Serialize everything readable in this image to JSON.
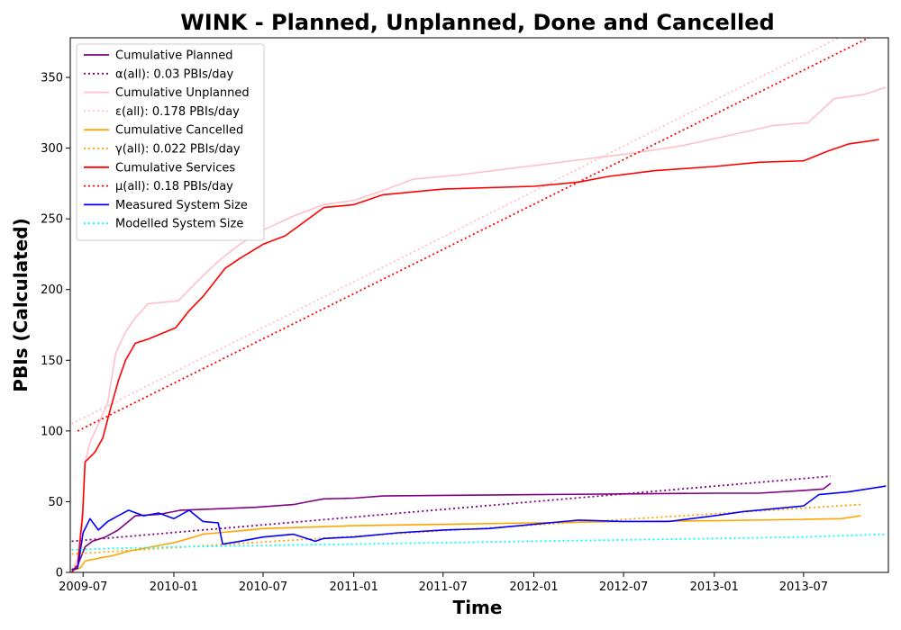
{
  "chart_data": {
    "type": "line",
    "title": "WINK - Planned, Unplanned, Done  and Cancelled",
    "xlabel": "Time",
    "ylabel": "PBIs (Calculated)",
    "xlim": [
      "2009-06-05",
      "2013-12-20"
    ],
    "ylim": [
      0,
      378
    ],
    "x_ticks": [
      {
        "date": "2009-07-01",
        "label": "2009-07"
      },
      {
        "date": "2010-01-01",
        "label": "2010-01"
      },
      {
        "date": "2010-07-01",
        "label": "2010-07"
      },
      {
        "date": "2011-01-01",
        "label": "2011-01"
      },
      {
        "date": "2011-07-01",
        "label": "2011-07"
      },
      {
        "date": "2012-01-01",
        "label": "2012-01"
      },
      {
        "date": "2012-07-01",
        "label": "2012-07"
      },
      {
        "date": "2013-01-01",
        "label": "2013-01"
      },
      {
        "date": "2013-07-01",
        "label": "2013-07"
      }
    ],
    "y_ticks": [
      0,
      50,
      100,
      150,
      200,
      250,
      300,
      350
    ],
    "grid": false,
    "legend_position": "top-left",
    "series": [
      {
        "name": "Cumulative Planned",
        "color": "#800080",
        "style": "solid",
        "x": [
          "2009-06-08",
          "2009-06-20",
          "2009-06-28",
          "2009-07-05",
          "2009-07-20",
          "2009-08-15",
          "2009-09-10",
          "2009-10-15",
          "2009-12-01",
          "2010-01-15",
          "2010-04-01",
          "2010-06-15",
          "2010-09-01",
          "2010-10-01",
          "2010-11-01",
          "2011-01-01",
          "2011-03-01",
          "2011-07-01",
          "2012-01-01",
          "2012-07-01",
          "2013-01-01",
          "2013-04-01",
          "2013-07-01",
          "2013-08-10",
          "2013-08-25"
        ],
        "y": [
          2,
          5,
          12,
          18,
          22,
          25,
          30,
          40,
          41,
          44,
          45,
          46,
          48,
          50,
          52,
          52.5,
          54,
          54.5,
          55,
          55.5,
          56,
          56,
          58,
          59,
          63
        ]
      },
      {
        "name": "α(all): 0.03 PBIs/day",
        "color": "#800080",
        "style": "dotted",
        "x": [
          "2009-06-08",
          "2013-08-25"
        ],
        "y": [
          22,
          68
        ]
      },
      {
        "name": "Cumulative Unplanned",
        "color": "#ffc0cb",
        "style": "solid",
        "x": [
          "2009-06-08",
          "2009-06-20",
          "2009-06-30",
          "2009-07-05",
          "2009-07-15",
          "2009-08-01",
          "2009-08-20",
          "2009-09-05",
          "2009-09-25",
          "2009-10-15",
          "2009-11-10",
          "2010-01-10",
          "2010-02-15",
          "2010-04-01",
          "2010-05-15",
          "2010-07-01",
          "2010-09-01",
          "2010-11-01",
          "2011-01-01",
          "2011-03-01",
          "2011-05-01",
          "2011-08-01",
          "2011-11-01",
          "2012-02-01",
          "2012-05-01",
          "2012-08-01",
          "2012-11-01",
          "2013-02-01",
          "2013-05-01",
          "2013-07-10",
          "2013-09-01",
          "2013-11-01",
          "2013-12-15"
        ],
        "y": [
          0,
          10,
          45,
          78,
          92,
          105,
          120,
          155,
          170,
          180,
          190,
          192,
          205,
          220,
          232,
          242,
          252,
          260,
          263,
          270,
          278,
          281,
          285,
          289,
          293,
          297,
          302,
          309,
          316,
          318,
          335,
          338,
          343
        ]
      },
      {
        "name": "ε(all): 0.178 PBIs/day",
        "color": "#ffc0cb",
        "style": "dotted",
        "x": [
          "2009-06-08",
          "2013-09-10"
        ],
        "y": [
          105,
          378
        ]
      },
      {
        "name": "Cumulative Cancelled",
        "color": "#ffa500",
        "style": "solid",
        "x": [
          "2009-06-08",
          "2009-06-25",
          "2009-07-05",
          "2009-08-01",
          "2009-09-01",
          "2009-10-01",
          "2009-11-01",
          "2009-12-01",
          "2010-01-01",
          "2010-02-01",
          "2010-03-01",
          "2010-04-01",
          "2010-07-01",
          "2011-01-01",
          "2011-07-01",
          "2012-01-01",
          "2012-07-01",
          "2013-01-01",
          "2013-07-01",
          "2013-09-15",
          "2013-10-25"
        ],
        "y": [
          1,
          3,
          8,
          10,
          12,
          15,
          17,
          19,
          21,
          24,
          27,
          28,
          31,
          33,
          34,
          35,
          36,
          36.5,
          37.5,
          38,
          40
        ]
      },
      {
        "name": "γ(all): 0.022 PBIs/day",
        "color": "#ffa500",
        "style": "dotted",
        "x": [
          "2009-06-08",
          "2013-10-25"
        ],
        "y": [
          13,
          48
        ]
      },
      {
        "name": "Cumulative Services",
        "color": "#ff0000",
        "style": "solid",
        "x": [
          "2009-06-08",
          "2009-06-20",
          "2009-06-30",
          "2009-07-05",
          "2009-07-25",
          "2009-08-10",
          "2009-08-25",
          "2009-09-10",
          "2009-09-25",
          "2009-10-15",
          "2009-11-10",
          "2010-01-05",
          "2010-02-01",
          "2010-03-01",
          "2010-04-15",
          "2010-05-15",
          "2010-07-01",
          "2010-08-15",
          "2010-10-01",
          "2010-11-01",
          "2011-01-01",
          "2011-03-01",
          "2011-07-01",
          "2012-01-01",
          "2012-04-01",
          "2012-06-01",
          "2012-09-01",
          "2013-01-01",
          "2013-04-01",
          "2013-07-01",
          "2013-08-20",
          "2013-10-01",
          "2013-12-01"
        ],
        "y": [
          0,
          5,
          40,
          78,
          85,
          95,
          115,
          135,
          150,
          162,
          165,
          173,
          185,
          195,
          215,
          222,
          232,
          238,
          250,
          258,
          260,
          267,
          271,
          273,
          276,
          280,
          284,
          287,
          290,
          291,
          298,
          303,
          306
        ]
      },
      {
        "name": "μ(all): 0.18 PBIs/day",
        "color": "#ff0000",
        "style": "dotted",
        "x": [
          "2009-06-20",
          "2013-11-10"
        ],
        "y": [
          100,
          378
        ]
      },
      {
        "name": "Measured System Size",
        "color": "#0000ff",
        "style": "solid",
        "x": [
          "2009-06-08",
          "2009-06-20",
          "2009-07-01",
          "2009-07-15",
          "2009-08-01",
          "2009-08-20",
          "2009-09-10",
          "2009-10-01",
          "2009-11-01",
          "2009-12-01",
          "2010-01-01",
          "2010-02-01",
          "2010-03-01",
          "2010-04-01",
          "2010-04-10",
          "2010-05-15",
          "2010-07-01",
          "2010-09-01",
          "2010-10-15",
          "2010-11-01",
          "2011-01-01",
          "2011-04-01",
          "2011-07-01",
          "2011-10-01",
          "2012-01-01",
          "2012-04-01",
          "2012-07-01",
          "2012-10-01",
          "2013-01-01",
          "2013-03-01",
          "2013-05-01",
          "2013-07-01",
          "2013-08-01",
          "2013-10-01",
          "2013-12-15"
        ],
        "y": [
          2,
          3,
          28,
          38,
          30,
          36,
          40,
          44,
          40,
          42,
          38,
          44,
          36,
          35,
          20,
          22,
          25,
          27,
          22,
          24,
          25,
          28,
          30,
          31,
          34,
          37,
          36,
          36,
          40,
          43,
          45,
          47,
          55,
          57,
          61
        ]
      },
      {
        "name": "Modelled System Size",
        "color": "#00ffff",
        "style": "dotted",
        "x": [
          "2009-06-08",
          "2009-09-01",
          "2010-01-01",
          "2010-07-01",
          "2011-01-01",
          "2011-07-01",
          "2012-01-01",
          "2012-07-01",
          "2013-01-01",
          "2013-07-01",
          "2013-12-15"
        ],
        "y": [
          16,
          17,
          18,
          19,
          20,
          21,
          22,
          23,
          24,
          25,
          27
        ]
      }
    ]
  }
}
